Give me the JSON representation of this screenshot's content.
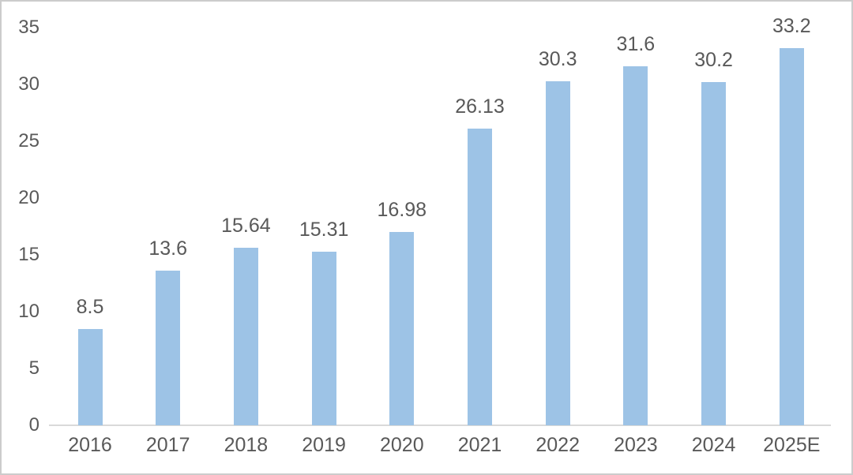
{
  "chart_data": {
    "type": "bar",
    "title": "",
    "xlabel": "",
    "ylabel": "",
    "categories": [
      "2016",
      "2017",
      "2018",
      "2019",
      "2020",
      "2021",
      "2022",
      "2023",
      "2024",
      "2025E"
    ],
    "values": [
      8.5,
      13.6,
      15.64,
      15.31,
      16.98,
      26.13,
      30.3,
      31.6,
      30.2,
      33.2
    ],
    "data_labels": [
      "8.5",
      "13.6",
      "15.64",
      "15.31",
      "16.98",
      "26.13",
      "30.3",
      "31.6",
      "30.2",
      "33.2"
    ],
    "ylim": [
      0,
      35
    ],
    "y_ticks": [
      0,
      5,
      10,
      15,
      20,
      25,
      30,
      35
    ],
    "y_tick_labels": [
      "0",
      "5",
      "10",
      "15",
      "20",
      "25",
      "30",
      "35"
    ],
    "grid": false,
    "legend": null,
    "colors": {
      "bar_fill": "#9DC3E6",
      "text": "#595959",
      "axis_line": "#D9D9D9"
    }
  }
}
